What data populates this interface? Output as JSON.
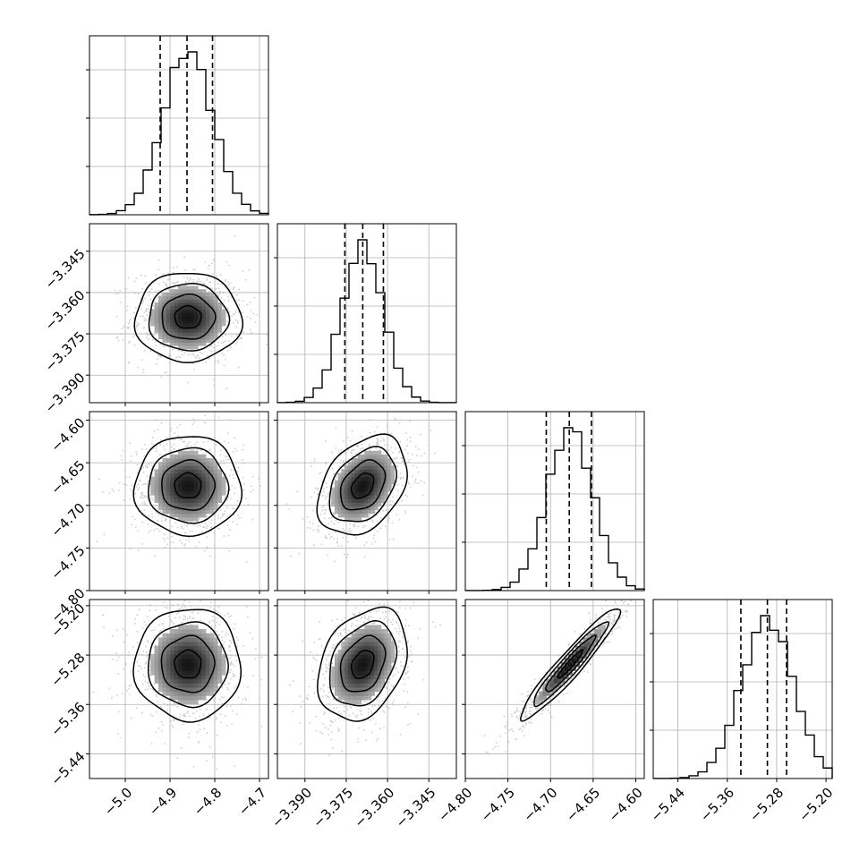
{
  "chart_data": {
    "type": "corner",
    "parameters": [
      {
        "center": -4.86,
        "sigma": 0.055,
        "q16": -4.922,
        "q50": -4.862,
        "q84": -4.805,
        "range": [
          -5.08,
          -4.68
        ],
        "ticks": [
          -5.0,
          -4.9,
          -4.8,
          -4.7
        ],
        "tick_labels": [
          "−5.0",
          "−4.9",
          "−4.8",
          "−4.7"
        ]
      },
      {
        "center": -3.369,
        "sigma": 0.0075,
        "q16": -3.3755,
        "q50": -3.369,
        "q84": -3.3615,
        "range": [
          -3.4,
          -3.335
        ],
        "ticks": [
          -3.39,
          -3.375,
          -3.36,
          -3.345
        ],
        "tick_labels": [
          "−3.390",
          "−3.375",
          "−3.360",
          "−3.345"
        ]
      },
      {
        "center": -4.677,
        "sigma": 0.027,
        "q16": -4.705,
        "q50": -4.678,
        "q84": -4.652,
        "range": [
          -4.8,
          -4.59
        ],
        "ticks": [
          -4.8,
          -4.75,
          -4.7,
          -4.65,
          -4.6
        ],
        "tick_labels": [
          "−4.80",
          "−4.75",
          "−4.70",
          "−4.65",
          "−4.60"
        ]
      },
      {
        "center": -5.295,
        "sigma": 0.042,
        "q16": -5.338,
        "q50": -5.295,
        "q84": -5.264,
        "range": [
          -5.48,
          -5.19
        ],
        "ticks": [
          -5.44,
          -5.36,
          -5.28,
          -5.2
        ],
        "tick_labels": [
          "−5.44",
          "−5.36",
          "−5.28",
          "−5.20"
        ]
      }
    ],
    "correlations": [
      {
        "x": 0,
        "y": 1,
        "rho": 0.0
      },
      {
        "x": 0,
        "y": 2,
        "rho": 0.0
      },
      {
        "x": 1,
        "y": 2,
        "rho": 0.35
      },
      {
        "x": 0,
        "y": 3,
        "rho": 0.0
      },
      {
        "x": 1,
        "y": 3,
        "rho": 0.3
      },
      {
        "x": 2,
        "y": 3,
        "rho": 0.95
      }
    ],
    "histogram_bins": 20,
    "contour_levels_sigma": [
      0.5,
      1.0,
      1.5,
      2.0
    ],
    "quantiles": [
      0.16,
      0.5,
      0.84
    ],
    "grid": true,
    "colors": {
      "line": "#000000",
      "points": "#bdbdbd",
      "grid": "#b0b0b0"
    }
  }
}
